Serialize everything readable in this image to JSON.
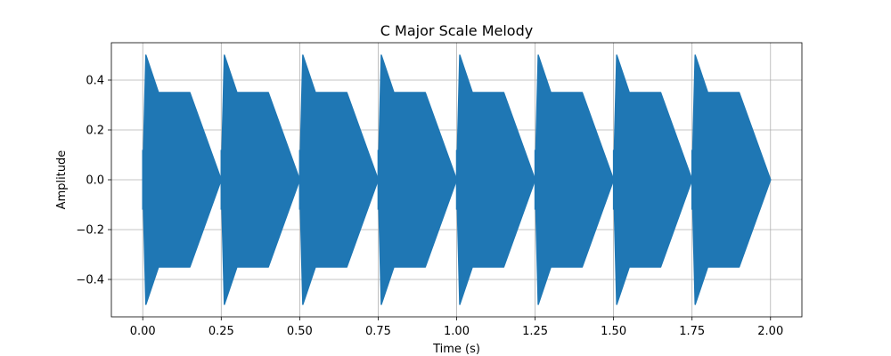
{
  "chart_data": {
    "type": "area",
    "title": "C Major Scale Melody",
    "xlabel": "Time (s)",
    "ylabel": "Amplitude",
    "xlim": [
      -0.1,
      2.1
    ],
    "ylim": [
      -0.55,
      0.55
    ],
    "grid": true,
    "series_color": "#1f77b4",
    "x_ticks": [
      "0.00",
      "0.25",
      "0.50",
      "0.75",
      "1.00",
      "1.25",
      "1.50",
      "1.75",
      "2.00"
    ],
    "x_tick_values": [
      0,
      0.25,
      0.5,
      0.75,
      1.0,
      1.25,
      1.5,
      1.75,
      2.0
    ],
    "y_ticks": [
      "−0.4",
      "−0.2",
      "0.0",
      "0.2",
      "0.4"
    ],
    "y_tick_values": [
      -0.4,
      -0.2,
      0.0,
      0.2,
      0.4
    ],
    "notes": [
      {
        "start": 0.0,
        "end": 0.25
      },
      {
        "start": 0.25,
        "end": 0.5
      },
      {
        "start": 0.5,
        "end": 0.75
      },
      {
        "start": 0.75,
        "end": 1.0
      },
      {
        "start": 1.0,
        "end": 1.25
      },
      {
        "start": 1.25,
        "end": 1.5
      },
      {
        "start": 1.5,
        "end": 1.75
      },
      {
        "start": 1.75,
        "end": 2.0
      }
    ],
    "envelope": {
      "attack_time": 0.01,
      "peak_amplitude": 0.5,
      "decay_end_time": 0.05,
      "sustain_amplitude": 0.35,
      "sustain_end_time": 0.15,
      "release_end_amplitude": 0.0
    }
  }
}
